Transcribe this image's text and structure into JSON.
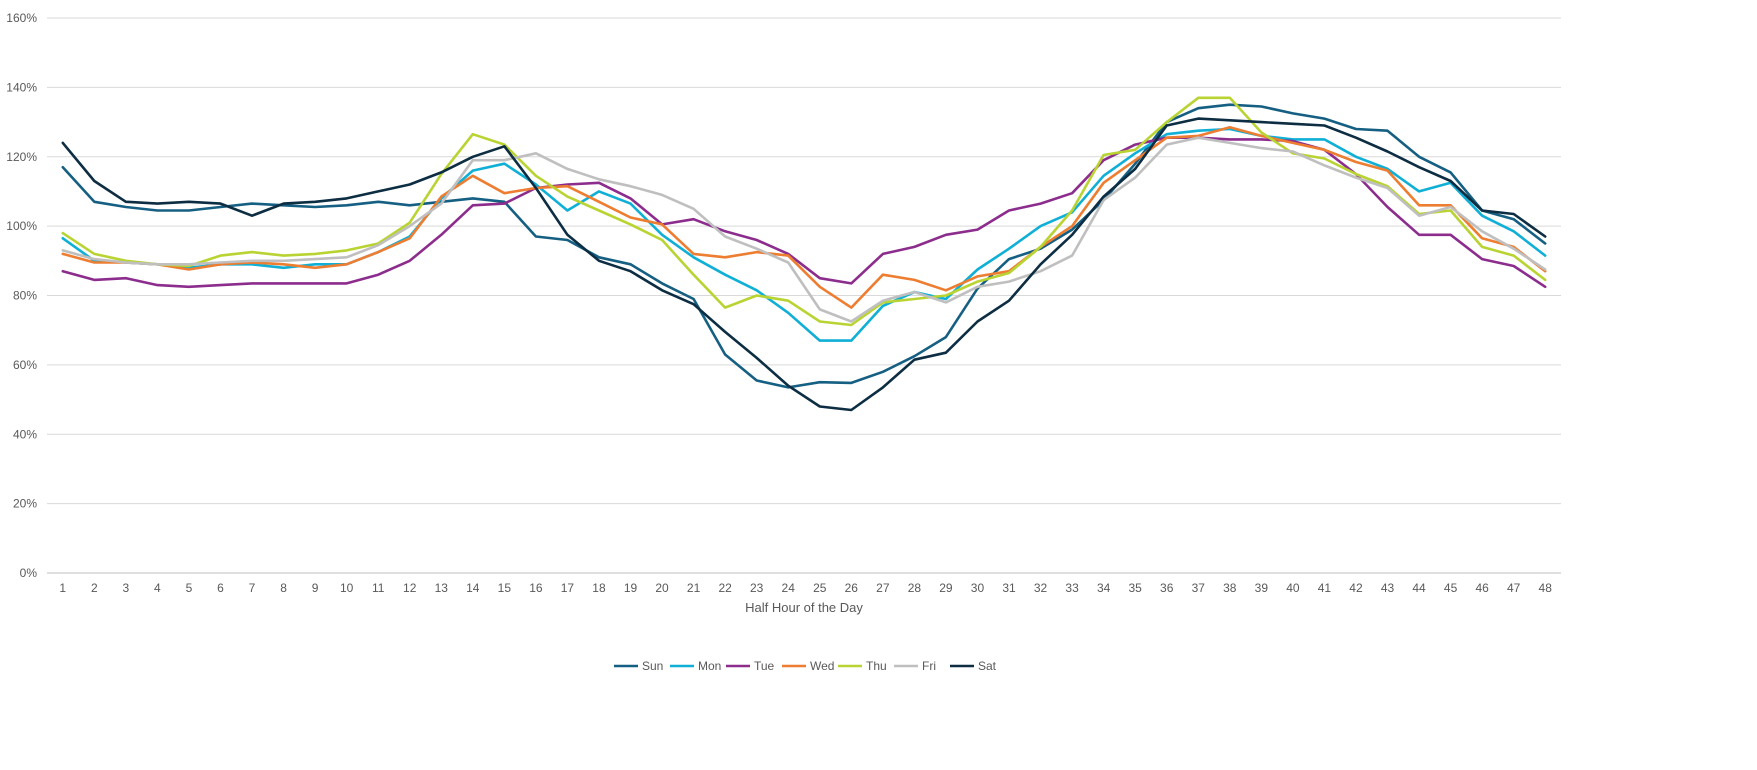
{
  "chart_data": {
    "type": "line",
    "title": "",
    "xlabel": "Half Hour of the Day",
    "ylabel": "",
    "ylim": [
      0,
      160
    ],
    "y_tick_step": 20,
    "y_tick_format": "percent",
    "y_ticks": [
      "0%",
      "20%",
      "40%",
      "60%",
      "80%",
      "100%",
      "120%",
      "140%",
      "160%"
    ],
    "grid": "horizontal",
    "legend_position": "bottom",
    "categories": [
      1,
      2,
      3,
      4,
      5,
      6,
      7,
      8,
      9,
      10,
      11,
      12,
      13,
      14,
      15,
      16,
      17,
      18,
      19,
      20,
      21,
      22,
      23,
      24,
      25,
      26,
      27,
      28,
      29,
      30,
      31,
      32,
      33,
      34,
      35,
      36,
      37,
      38,
      39,
      40,
      41,
      42,
      43,
      44,
      45,
      46,
      47,
      48
    ],
    "series": [
      {
        "name": "Sun",
        "color": "#155F82",
        "values": [
          117,
          107,
          105.5,
          104.5,
          104.5,
          105.5,
          106.5,
          106,
          105.5,
          106,
          107,
          106,
          107,
          108,
          107,
          97,
          96,
          91,
          89,
          83.5,
          79,
          63,
          55.5,
          53.5,
          55,
          54.8,
          58,
          62.5,
          68,
          82,
          90.5,
          93.5,
          99,
          107.5,
          118,
          130,
          134,
          135,
          134.5,
          132.5,
          131,
          128,
          127.5,
          120,
          115.5,
          104.5,
          102,
          95
        ]
      },
      {
        "name": "Mon",
        "color": "#0FAFD6",
        "values": [
          96.5,
          90,
          89.5,
          89,
          88,
          89,
          89,
          88,
          89,
          89,
          92.5,
          97,
          108,
          116,
          118,
          112,
          104.5,
          110,
          106.5,
          97.5,
          91,
          86,
          81.5,
          75,
          67,
          67,
          77,
          81,
          79,
          87.5,
          93.5,
          100,
          104,
          114.5,
          121,
          126.5,
          127.5,
          128,
          126,
          125,
          125,
          120,
          116.5,
          110,
          112.5,
          103,
          98.5,
          91.5
        ]
      },
      {
        "name": "Tue",
        "color": "#8C2D8E",
        "values": [
          87,
          84.5,
          85,
          83,
          82.5,
          83,
          83.5,
          83.5,
          83.5,
          83.5,
          86,
          90,
          97.5,
          106,
          106.5,
          111,
          112,
          112.5,
          108,
          100.5,
          102,
          98.5,
          96,
          92,
          85,
          83.5,
          92,
          94,
          97.5,
          99,
          104.5,
          106.5,
          109.5,
          119,
          123.5,
          125.5,
          125.5,
          125,
          125,
          124.5,
          122,
          115,
          105.5,
          97.5,
          97.5,
          90.5,
          88.5,
          82.5
        ]
      },
      {
        "name": "Wed",
        "color": "#ED7D31",
        "values": [
          92,
          89.5,
          89.5,
          89,
          87.5,
          89,
          89.5,
          89,
          88,
          89,
          92.5,
          96.5,
          108.5,
          114.5,
          109.5,
          111,
          111.5,
          107,
          102.5,
          100.5,
          92,
          91,
          92.5,
          91.5,
          82.5,
          76.5,
          86,
          84.5,
          81.5,
          85.5,
          87,
          94,
          100,
          112.5,
          119,
          125.5,
          126,
          128.5,
          126,
          124,
          122,
          118.5,
          116,
          106,
          106,
          96.5,
          94,
          87
        ]
      },
      {
        "name": "Thu",
        "color": "#B9D432",
        "values": [
          98,
          92,
          90,
          89,
          88.5,
          91.5,
          92.5,
          91.5,
          92,
          93,
          95,
          101,
          115,
          126.5,
          123.5,
          114.5,
          108.5,
          104.5,
          100.5,
          96,
          86,
          76.5,
          80,
          78.5,
          72.5,
          71.5,
          78,
          79,
          80,
          84,
          86.5,
          94,
          104.5,
          120.5,
          122,
          130,
          137,
          137,
          127,
          121,
          119.5,
          115,
          111.5,
          103.5,
          104.5,
          94,
          91.5,
          84.5
        ]
      },
      {
        "name": "Fri",
        "color": "#BFBFBF",
        "values": [
          93,
          90.5,
          89.5,
          89,
          89,
          89.5,
          90,
          90,
          90.5,
          91,
          94.5,
          100,
          106.5,
          119,
          119,
          121,
          116.5,
          113.5,
          111.5,
          109,
          105,
          97,
          93.5,
          89.5,
          76,
          72.5,
          78.5,
          81,
          78,
          82.5,
          84,
          87,
          91.5,
          107.5,
          114,
          123.5,
          125.5,
          124,
          122.5,
          121.5,
          117.5,
          114,
          111,
          103,
          105.5,
          98.5,
          93.5,
          87.5
        ]
      },
      {
        "name": "Sat",
        "color": "#0C2D42",
        "values": [
          124,
          113,
          107,
          106.5,
          107,
          106.5,
          103,
          106.5,
          107,
          108,
          110,
          112,
          115.5,
          120,
          123,
          111,
          97.5,
          90,
          87,
          81.5,
          77.5,
          69.5,
          62,
          54,
          48,
          47,
          53.5,
          61.5,
          63.5,
          72.5,
          78.5,
          89,
          97.5,
          108.5,
          116.5,
          129,
          131,
          130.5,
          130,
          129.5,
          129,
          125.5,
          121.5,
          117,
          113,
          104.5,
          103.5,
          97
        ]
      }
    ]
  }
}
